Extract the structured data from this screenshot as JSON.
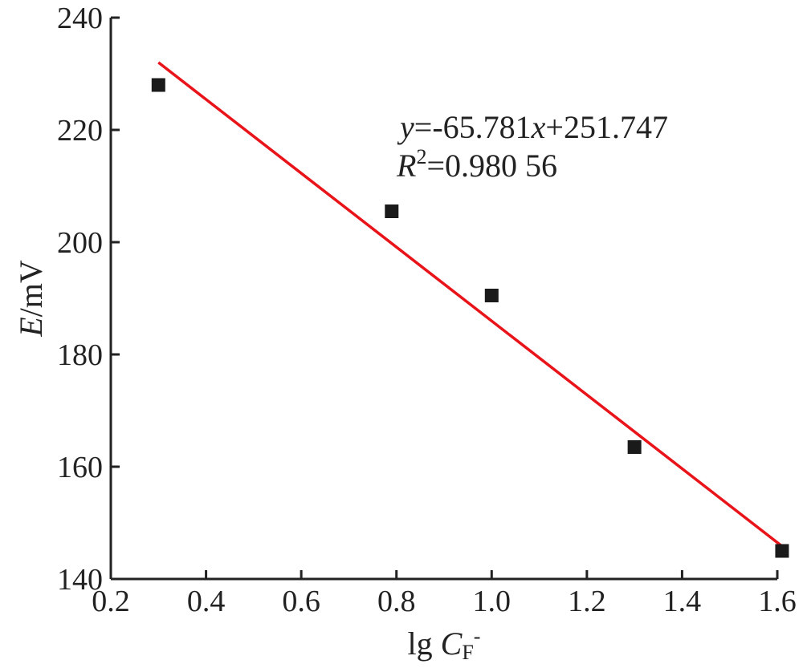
{
  "chart_data": {
    "type": "scatter",
    "title": "",
    "xlabel": {
      "prefix": "lg ",
      "var": "C",
      "sub": "F",
      "sup": "-"
    },
    "ylabel": {
      "var": "E",
      "rest": "/mV"
    },
    "xlim": [
      0.2,
      1.6
    ],
    "ylim": [
      140,
      240
    ],
    "x_ticks": [
      "0.2",
      "0.4",
      "0.6",
      "0.8",
      "1.0",
      "1.2",
      "1.4",
      "1.6"
    ],
    "y_ticks": [
      "140",
      "160",
      "180",
      "200",
      "220",
      "240"
    ],
    "grid": false,
    "series": [
      {
        "marker": "square",
        "color": "#1a1a1a",
        "points": [
          {
            "x": 0.3,
            "y": 228.0
          },
          {
            "x": 0.79,
            "y": 205.5
          },
          {
            "x": 1.0,
            "y": 190.5
          },
          {
            "x": 1.3,
            "y": 163.5
          },
          {
            "x": 1.61,
            "y": 145.0
          }
        ]
      }
    ],
    "fit_line": {
      "color": "#e8141a",
      "slope": -65.781,
      "intercept": 251.747,
      "x_range": [
        0.3,
        1.61
      ]
    },
    "annotation": {
      "line1": {
        "y": "y",
        "mid": "=-65.781",
        "x": "x",
        "end": "+251.747"
      },
      "line2": {
        "r": "R",
        "sup": "2",
        "end": "=0.980 56"
      }
    }
  }
}
